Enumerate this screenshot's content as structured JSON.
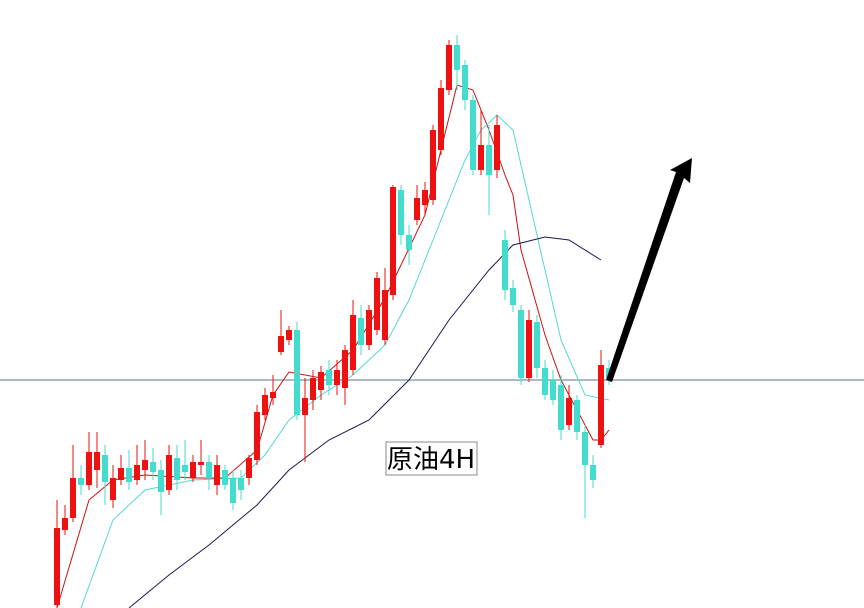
{
  "chart_data": {
    "type": "candlestick",
    "label": "原油4H",
    "xlim": [
      1,
      70
    ],
    "ylim": [
      0,
      608
    ],
    "up_color": "#ee1111",
    "down_color": "#44dccc",
    "x": [
      1,
      2,
      3,
      4,
      5,
      6,
      7,
      8,
      9,
      10,
      11,
      12,
      13,
      14,
      15,
      16,
      17,
      18,
      19,
      20,
      21,
      22,
      23,
      24,
      25,
      26,
      27,
      28,
      29,
      30,
      31,
      32,
      33,
      34,
      35,
      36,
      37,
      38,
      39,
      40,
      41,
      42,
      43,
      44,
      45,
      46,
      47,
      48,
      49,
      50,
      51,
      52,
      53,
      54,
      55,
      56,
      57,
      58,
      59,
      60,
      61,
      62,
      63,
      64,
      65,
      66,
      67,
      68,
      69,
      70
    ],
    "open": [
      3,
      78,
      90,
      130,
      123,
      138,
      153,
      108,
      128,
      140,
      128,
      138,
      146,
      138,
      118,
      150,
      143,
      130,
      143,
      146,
      123,
      138,
      130,
      130,
      130,
      148,
      193,
      210,
      256,
      268,
      278,
      193,
      208,
      218,
      238,
      223,
      220,
      238,
      290,
      263,
      278,
      268,
      313,
      418,
      373,
      388,
      403,
      408,
      458,
      518,
      563,
      543,
      508,
      438,
      463,
      438,
      368,
      320,
      298,
      230,
      286,
      240,
      228,
      223,
      183,
      208,
      176,
      143,
      163,
      240
    ],
    "high": [
      108,
      103,
      163,
      143,
      176,
      176,
      163,
      143,
      153,
      158,
      163,
      168,
      160,
      148,
      163,
      163,
      168,
      153,
      168,
      153,
      153,
      143,
      138,
      138,
      153,
      203,
      220,
      233,
      298,
      282,
      286,
      230,
      238,
      242,
      248,
      248,
      263,
      308,
      303,
      303,
      336,
      340,
      423,
      423,
      383,
      423,
      426,
      483,
      528,
      568,
      573,
      548,
      513,
      498,
      483,
      493,
      378,
      328,
      303,
      298,
      293,
      248,
      238,
      233,
      223,
      213,
      183,
      153,
      258,
      248
    ],
    "low": [
      0,
      73,
      86,
      113,
      118,
      120,
      103,
      100,
      123,
      118,
      123,
      128,
      128,
      93,
      113,
      118,
      128,
      126,
      133,
      118,
      113,
      118,
      98,
      108,
      123,
      143,
      188,
      203,
      253,
      263,
      188,
      146,
      198,
      208,
      213,
      213,
      203,
      233,
      253,
      258,
      273,
      263,
      308,
      363,
      343,
      383,
      393,
      403,
      453,
      513,
      518,
      498,
      433,
      433,
      393,
      430,
      308,
      296,
      223,
      226,
      230,
      208,
      203,
      168,
      178,
      168,
      90,
      120,
      160,
      223
    ],
    "close": [
      80,
      90,
      130,
      123,
      156,
      156,
      126,
      130,
      140,
      126,
      143,
      148,
      136,
      116,
      153,
      128,
      136,
      146,
      146,
      130,
      143,
      123,
      105,
      118,
      150,
      196,
      213,
      216,
      272,
      278,
      193,
      210,
      230,
      236,
      223,
      238,
      258,
      293,
      263,
      298,
      330,
      318,
      421,
      373,
      358,
      410,
      418,
      478,
      520,
      563,
      538,
      508,
      438,
      463,
      433,
      483,
      318,
      303,
      230,
      288,
      240,
      213,
      208,
      178,
      210,
      176,
      143,
      128,
      243,
      230
    ],
    "series": [
      {
        "color": "#cc1111",
        "x": [
          1,
          5,
          8,
          12,
          18,
          22,
          26,
          28,
          30,
          34,
          38,
          42,
          44,
          47,
          49,
          51,
          53,
          55,
          57,
          58,
          59,
          62,
          64,
          66,
          68,
          69,
          70
        ],
        "values": [
          0,
          108,
          128,
          133,
          130,
          130,
          158,
          213,
          236,
          230,
          258,
          310,
          343,
          393,
          458,
          523,
          518,
          478,
          433,
          413,
          358,
          273,
          228,
          198,
          168,
          168,
          178
        ]
      },
      {
        "color": "#55d8d0",
        "x": [
          4,
          8,
          12,
          18,
          24,
          27,
          30,
          34,
          38,
          42,
          45,
          48,
          50,
          52,
          54,
          56,
          58,
          60,
          62,
          64,
          67,
          70
        ],
        "values": [
          0,
          88,
          118,
          128,
          130,
          153,
          188,
          213,
          233,
          263,
          308,
          368,
          408,
          448,
          478,
          493,
          478,
          408,
          338,
          268,
          213,
          208
        ]
      },
      {
        "color": "#1a1a50",
        "x": [
          10,
          15,
          20,
          26,
          30,
          35,
          40,
          45,
          50,
          55,
          58,
          62,
          65,
          69
        ],
        "values": [
          0,
          33,
          63,
          103,
          138,
          168,
          188,
          228,
          288,
          338,
          363,
          371,
          368,
          348
        ]
      }
    ],
    "hline": 228,
    "hline_color": "#5a7590"
  }
}
